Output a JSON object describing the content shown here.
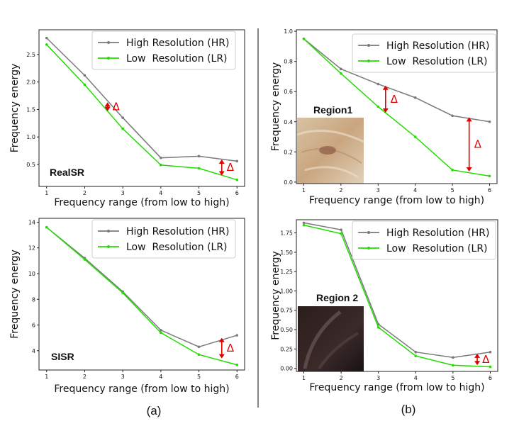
{
  "captions": {
    "a": "(a)",
    "b": "(b)"
  },
  "colors": {
    "hr": "#7a7a7a",
    "lr": "#22dd00",
    "annotation": "#e00000"
  },
  "chart_data": [
    {
      "type": "line",
      "panel_label": "RealSR",
      "xlabel": "Frequency range (from low to high)",
      "ylabel": "Frequency energy",
      "x": [
        1,
        2,
        3,
        4,
        5,
        6
      ],
      "xticks": [
        "1",
        "2",
        "3",
        "4",
        "5",
        "6"
      ],
      "yticks": [
        "0.5",
        "1.0",
        "1.5",
        "2.0",
        "2.5"
      ],
      "xlim": [
        0.8,
        6.2
      ],
      "ylim": [
        0.1,
        2.95
      ],
      "legend_position": "top-right",
      "series": [
        {
          "name": "High Resolution (HR)",
          "values": [
            2.8,
            2.12,
            1.35,
            0.62,
            0.65,
            0.56
          ]
        },
        {
          "name": "Low  Resolution (LR)",
          "values": [
            2.68,
            1.95,
            1.15,
            0.49,
            0.43,
            0.22
          ]
        }
      ],
      "annotations": [
        {
          "text": "Δ",
          "x": 2.6,
          "y_from": 1.47,
          "y_to": 1.63
        },
        {
          "text": "Δ",
          "x": 5.6,
          "y_from": 0.3,
          "y_to": 0.59
        }
      ]
    },
    {
      "type": "line",
      "panel_label": "SISR",
      "xlabel": "Frequency range (from low to high)",
      "ylabel": "Frequency energy",
      "x": [
        1,
        2,
        3,
        4,
        5,
        6
      ],
      "xticks": [
        "1",
        "2",
        "3",
        "4",
        "5",
        "6"
      ],
      "yticks": [
        "4",
        "6",
        "8",
        "10",
        "12",
        "14"
      ],
      "xlim": [
        0.8,
        6.2
      ],
      "ylim": [
        2.5,
        14.3
      ],
      "legend_position": "top-right",
      "series": [
        {
          "name": "High Resolution (HR)",
          "values": [
            13.6,
            11.2,
            8.6,
            5.6,
            4.3,
            5.2
          ]
        },
        {
          "name": "Low  Resolution (LR)",
          "values": [
            13.6,
            11.1,
            8.5,
            5.4,
            3.7,
            2.9
          ]
        }
      ],
      "annotations": [
        {
          "text": "Δ",
          "x": 5.6,
          "y_from": 3.4,
          "y_to": 5.0
        }
      ]
    },
    {
      "type": "line",
      "panel_label": "Region1",
      "xlabel": "Frequency range (from low to high)",
      "ylabel": "Frequency energy",
      "x": [
        1,
        2,
        3,
        4,
        5,
        6
      ],
      "xticks": [
        "1",
        "2",
        "3",
        "4",
        "5",
        "6"
      ],
      "yticks": [
        "0.0",
        "0.2",
        "0.4",
        "0.6",
        "0.8",
        "1.0"
      ],
      "xlim": [
        0.8,
        6.2
      ],
      "ylim": [
        -0.01,
        1.01
      ],
      "legend_position": "top-right",
      "series": [
        {
          "name": "High Resolution (HR)",
          "values": [
            0.95,
            0.75,
            0.65,
            0.56,
            0.44,
            0.4
          ]
        },
        {
          "name": "Low  Resolution (LR)",
          "values": [
            0.95,
            0.72,
            0.5,
            0.3,
            0.08,
            0.04
          ]
        }
      ],
      "annotations": [
        {
          "text": "Δ",
          "x": 3.2,
          "y_from": 0.46,
          "y_to": 0.64
        },
        {
          "text": "Δ",
          "x": 5.45,
          "y_from": 0.07,
          "y_to": 0.43
        }
      ]
    },
    {
      "type": "line",
      "panel_label": "Region 2",
      "xlabel": "Frequency range (from low to high)",
      "ylabel": "Frequency energy",
      "x": [
        1,
        2,
        3,
        4,
        5,
        6
      ],
      "xticks": [
        "1",
        "2",
        "3",
        "4",
        "5",
        "6"
      ],
      "yticks": [
        "0.00",
        "0.25",
        "0.50",
        "0.75",
        "1.00",
        "1.25",
        "1.50",
        "1.75"
      ],
      "xlim": [
        0.8,
        6.2
      ],
      "ylim": [
        -0.04,
        1.92
      ],
      "legend_position": "top-right",
      "series": [
        {
          "name": "High Resolution (HR)",
          "values": [
            1.88,
            1.79,
            0.57,
            0.21,
            0.14,
            0.21
          ]
        },
        {
          "name": "Low  Resolution (LR)",
          "values": [
            1.85,
            1.74,
            0.53,
            0.16,
            0.04,
            0.02
          ]
        }
      ],
      "annotations": [
        {
          "text": "Δ",
          "x": 5.65,
          "y_from": 0.04,
          "y_to": 0.19
        }
      ]
    }
  ]
}
